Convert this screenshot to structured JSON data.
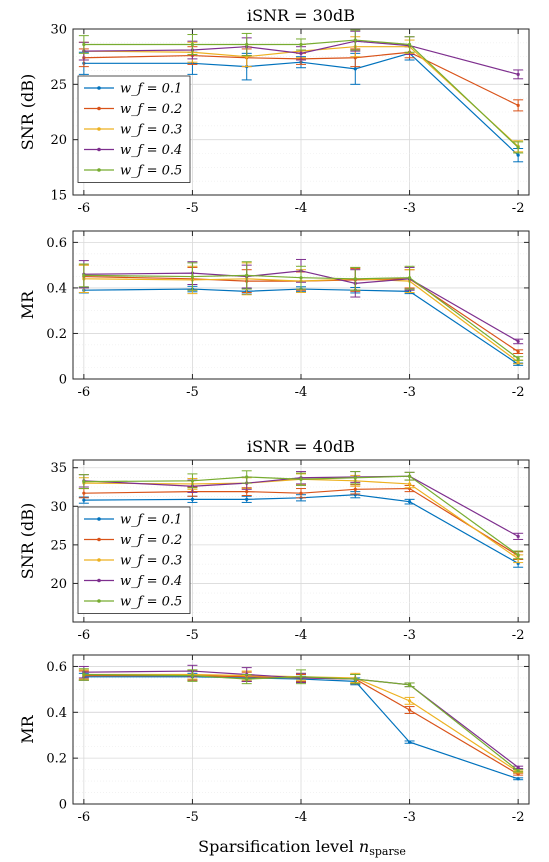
{
  "colors": [
    "#0072bd",
    "#d95319",
    "#edb120",
    "#7e2f8e",
    "#77ac30"
  ],
  "xlabel_main": "Sparsification level",
  "xlabel_var": "n",
  "xlabel_sub": "sparse",
  "legend_entries": [
    "w_f = 0.1",
    "w_f = 0.2",
    "w_f = 0.3",
    "w_f = 0.4",
    "w_f = 0.5"
  ],
  "chart_data": [
    {
      "type": "line",
      "title": "iSNR = 30dB",
      "ylabel": "SNR (dB)",
      "xlim": [
        -6.1,
        -1.9
      ],
      "ylim": [
        15,
        30
      ],
      "xticks": [
        "-6",
        "-5",
        "-4",
        "-3",
        "-2"
      ],
      "yticks": [
        "15",
        "20",
        "25",
        "30"
      ],
      "legend": "inside-left",
      "x": [
        -6,
        -5,
        -4.5,
        -4,
        -3.5,
        -3,
        -2
      ],
      "series": [
        {
          "name": "w_f = 0.1",
          "values": [
            26.9,
            26.9,
            26.6,
            27.0,
            26.4,
            27.8,
            18.6
          ],
          "err": [
            1.0,
            1.0,
            1.2,
            0.5,
            1.4,
            0.6,
            0.6
          ]
        },
        {
          "name": "w_f = 0.2",
          "values": [
            27.4,
            27.6,
            27.4,
            27.3,
            27.4,
            27.9,
            23.1
          ],
          "err": [
            0.8,
            0.8,
            0.8,
            0.5,
            0.8,
            0.5,
            0.5
          ]
        },
        {
          "name": "w_f = 0.3",
          "values": [
            28.0,
            27.9,
            27.5,
            28.0,
            28.4,
            28.4,
            19.4
          ],
          "err": [
            0.8,
            0.9,
            0.9,
            0.6,
            0.9,
            0.6,
            0.5
          ]
        },
        {
          "name": "w_f = 0.4",
          "values": [
            28.0,
            28.1,
            28.4,
            27.8,
            28.9,
            28.5,
            25.9
          ],
          "err": [
            0.8,
            0.8,
            0.8,
            0.6,
            0.9,
            0.8,
            0.4
          ]
        },
        {
          "name": "w_f = 0.5",
          "values": [
            28.6,
            28.6,
            28.6,
            28.6,
            29.0,
            28.6,
            19.3
          ],
          "err": [
            0.8,
            0.9,
            1.0,
            0.5,
            0.9,
            0.7,
            0.5
          ]
        }
      ]
    },
    {
      "type": "line",
      "title": "",
      "ylabel": "MR",
      "xlim": [
        -6.1,
        -1.9
      ],
      "ylim": [
        0,
        0.65
      ],
      "xticks": [
        "-6",
        "-5",
        "-4",
        "-3",
        "-2"
      ],
      "yticks": [
        "0",
        "0.2",
        "0.4",
        "0.6"
      ],
      "x": [
        -6,
        -5,
        -4.5,
        -4,
        -3.5,
        -3,
        -2
      ],
      "series": [
        {
          "name": "w_f = 0.1",
          "values": [
            0.39,
            0.395,
            0.385,
            0.395,
            0.39,
            0.385,
            0.065
          ],
          "err": [
            0.012,
            0.012,
            0.012,
            0.01,
            0.012,
            0.01,
            0.005
          ]
        },
        {
          "name": "w_f = 0.2",
          "values": [
            0.45,
            0.44,
            0.43,
            0.43,
            0.435,
            0.44,
            0.12
          ],
          "err": [
            0.05,
            0.05,
            0.05,
            0.04,
            0.05,
            0.04,
            0.008
          ]
        },
        {
          "name": "w_f = 0.3",
          "values": [
            0.44,
            0.435,
            0.44,
            0.43,
            0.44,
            0.43,
            0.075
          ],
          "err": [
            0.06,
            0.06,
            0.07,
            0.05,
            0.05,
            0.05,
            0.008
          ]
        },
        {
          "name": "w_f = 0.4",
          "values": [
            0.46,
            0.465,
            0.45,
            0.475,
            0.42,
            0.44,
            0.165
          ],
          "err": [
            0.06,
            0.05,
            0.05,
            0.05,
            0.06,
            0.05,
            0.01
          ]
        },
        {
          "name": "w_f = 0.5",
          "values": [
            0.455,
            0.45,
            0.455,
            0.445,
            0.44,
            0.445,
            0.09
          ],
          "err": [
            0.05,
            0.06,
            0.06,
            0.05,
            0.05,
            0.05,
            0.008
          ]
        }
      ]
    },
    {
      "type": "line",
      "title": "iSNR = 40dB",
      "ylabel": "SNR (dB)",
      "xlim": [
        -6.1,
        -1.9
      ],
      "ylim": [
        15,
        36
      ],
      "xticks": [
        "-6",
        "-5",
        "-4",
        "-3",
        "-2"
      ],
      "yticks": [
        "20",
        "25",
        "30",
        "35"
      ],
      "legend": "inside-left",
      "x": [
        -6,
        -5,
        -4.5,
        -4,
        -3.5,
        -3,
        -2
      ],
      "series": [
        {
          "name": "w_f = 0.1",
          "values": [
            30.8,
            30.9,
            30.9,
            31.1,
            31.5,
            30.6,
            22.6
          ],
          "err": [
            0.4,
            0.4,
            0.4,
            0.4,
            0.4,
            0.3,
            0.5
          ]
        },
        {
          "name": "w_f = 0.2",
          "values": [
            31.7,
            31.9,
            31.9,
            31.7,
            32.2,
            32.3,
            23.6
          ],
          "err": [
            0.6,
            0.6,
            0.5,
            0.6,
            0.6,
            0.4,
            0.5
          ]
        },
        {
          "name": "w_f = 0.3",
          "values": [
            33.0,
            32.9,
            33.0,
            33.5,
            33.3,
            32.9,
            23.2
          ],
          "err": [
            0.7,
            0.7,
            0.7,
            0.7,
            0.7,
            0.5,
            0.5
          ]
        },
        {
          "name": "w_f = 0.4",
          "values": [
            33.3,
            32.6,
            33.0,
            33.7,
            33.8,
            33.9,
            26.1
          ],
          "err": [
            0.8,
            0.8,
            0.8,
            0.8,
            0.7,
            0.5,
            0.4
          ]
        },
        {
          "name": "w_f = 0.5",
          "values": [
            33.2,
            33.3,
            33.8,
            33.5,
            33.7,
            33.9,
            23.7
          ],
          "err": [
            0.9,
            0.9,
            0.8,
            0.8,
            0.8,
            0.5,
            0.5
          ]
        }
      ]
    },
    {
      "type": "line",
      "title": "",
      "ylabel": "MR",
      "xlim": [
        -6.1,
        -1.9
      ],
      "ylim": [
        0,
        0.65
      ],
      "xticks": [
        "-6",
        "-5",
        "-4",
        "-3",
        "-2"
      ],
      "yticks": [
        "0",
        "0.2",
        "0.4",
        "0.6"
      ],
      "x": [
        -6,
        -5,
        -4.5,
        -4,
        -3.5,
        -3,
        -2
      ],
      "series": [
        {
          "name": "w_f = 0.1",
          "values": [
            0.555,
            0.555,
            0.55,
            0.545,
            0.535,
            0.27,
            0.11
          ],
          "err": [
            0.015,
            0.015,
            0.015,
            0.012,
            0.015,
            0.005,
            0.004
          ]
        },
        {
          "name": "w_f = 0.2",
          "values": [
            0.56,
            0.56,
            0.555,
            0.55,
            0.545,
            0.41,
            0.13
          ],
          "err": [
            0.02,
            0.02,
            0.02,
            0.015,
            0.02,
            0.015,
            0.004
          ]
        },
        {
          "name": "w_f = 0.3",
          "values": [
            0.565,
            0.565,
            0.56,
            0.555,
            0.55,
            0.45,
            0.14
          ],
          "err": [
            0.02,
            0.02,
            0.02,
            0.015,
            0.02,
            0.015,
            0.004
          ]
        },
        {
          "name": "w_f = 0.4",
          "values": [
            0.575,
            0.58,
            0.565,
            0.55,
            0.545,
            0.52,
            0.16
          ],
          "err": [
            0.025,
            0.025,
            0.03,
            0.02,
            0.02,
            0.008,
            0.005
          ]
        },
        {
          "name": "w_f = 0.5",
          "values": [
            0.565,
            0.56,
            0.545,
            0.555,
            0.545,
            0.52,
            0.145
          ],
          "err": [
            0.025,
            0.025,
            0.02,
            0.03,
            0.02,
            0.008,
            0.005
          ]
        }
      ]
    }
  ]
}
